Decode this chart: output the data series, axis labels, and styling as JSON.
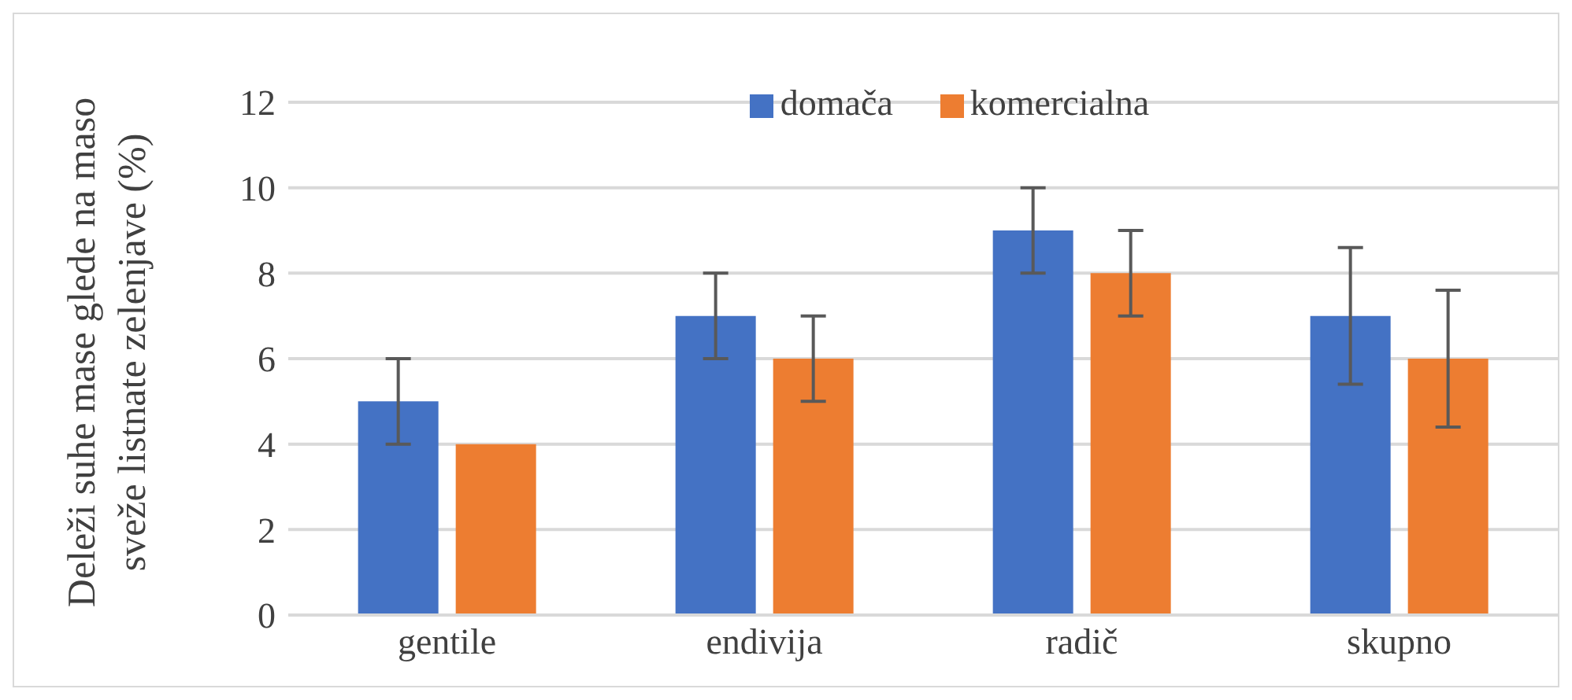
{
  "chart_data": {
    "type": "bar",
    "ylabel": "Deleži suhe mase glede na maso sveže listnate zelenjave (%)",
    "categories": [
      "gentile",
      "endivija",
      "radič",
      "skupno"
    ],
    "series": [
      {
        "name": "domača",
        "color": "#4472c4",
        "values": [
          5,
          7,
          9,
          7
        ],
        "errors": [
          1,
          1,
          1,
          1.6
        ]
      },
      {
        "name": "komercialna",
        "color": "#ed7d31",
        "values": [
          4,
          6,
          8,
          6
        ],
        "errors": [
          0,
          1,
          1,
          1.6
        ]
      }
    ],
    "ylim": [
      0,
      12
    ],
    "yticks": [
      0,
      2,
      4,
      6,
      8,
      10,
      12
    ],
    "grid": "y",
    "legend": "top"
  }
}
